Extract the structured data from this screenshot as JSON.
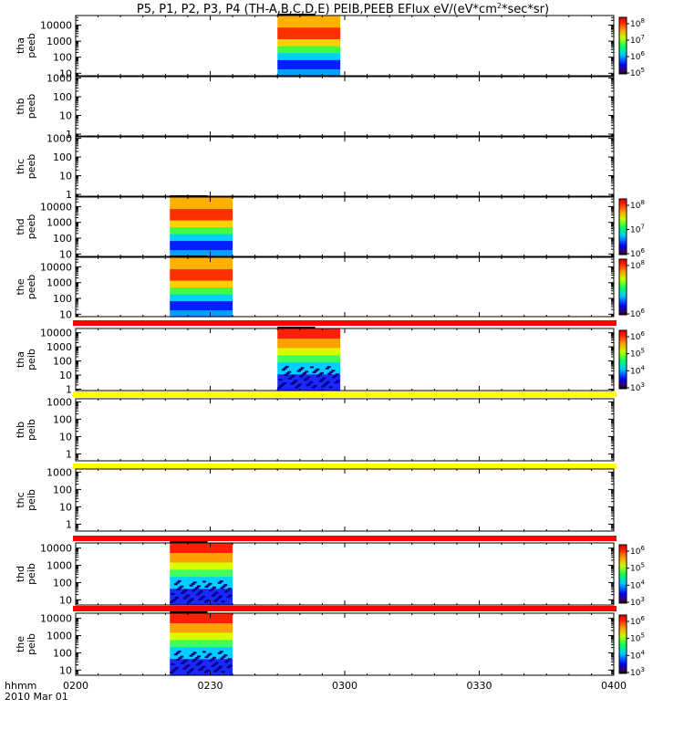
{
  "title": {
    "prefix": "P5, P1, P2, P3, P4 (TH-A,B,C,D,E) PEIB,PEEB EFlux eV/(eV*cm",
    "sup": "2",
    "suffix": "*sec*sr)"
  },
  "xaxis": {
    "ticks": [
      "0200",
      "0230",
      "0300",
      "0330",
      "0400"
    ],
    "corner_label": "hhmm",
    "date_label": "2010 Mar 01"
  },
  "chart_data": {
    "type": "heatmap",
    "x_range": [
      "02:00",
      "04:00"
    ],
    "panels": [
      {
        "probe": "tha",
        "product": "peeb",
        "ylabel": [
          "tha",
          "peeb"
        ],
        "yticks": [
          "10000",
          "1000",
          "100",
          "10"
        ],
        "ylog": true,
        "yrange_eV": [
          7,
          40000
        ],
        "data_interval": [
          "02:45",
          "02:59"
        ],
        "colorbar": [
          "10",
          "10",
          "10",
          "10"
        ],
        "colorbar_exp": [
          "8",
          "7",
          "6",
          "5"
        ],
        "mode_bar": "none"
      },
      {
        "probe": "thb",
        "product": "peeb",
        "ylabel": [
          "thb",
          "peeb"
        ],
        "yticks": [
          "1000",
          "100",
          "10",
          "1"
        ],
        "ylog": true,
        "yrange_eV": [
          0.8,
          1200
        ],
        "data_interval": null,
        "colorbar": [],
        "colorbar_exp": [],
        "mode_bar": "none"
      },
      {
        "probe": "thc",
        "product": "peeb",
        "ylabel": [
          "thc",
          "peeb"
        ],
        "yticks": [
          "1000",
          "100",
          "10",
          "1"
        ],
        "ylog": true,
        "yrange_eV": [
          0.8,
          1200
        ],
        "data_interval": null,
        "colorbar": [],
        "colorbar_exp": [],
        "mode_bar": "none"
      },
      {
        "probe": "thd",
        "product": "peeb",
        "ylabel": [
          "thd",
          "peeb"
        ],
        "yticks": [
          "10000",
          "1000",
          "100",
          "10"
        ],
        "ylog": true,
        "yrange_eV": [
          7,
          40000
        ],
        "data_interval": [
          "02:21",
          "02:35"
        ],
        "colorbar": [
          "10",
          "10",
          "10"
        ],
        "colorbar_exp": [
          "8",
          "7",
          "6"
        ],
        "mode_bar": "none"
      },
      {
        "probe": "the",
        "product": "peeb",
        "ylabel": [
          "the",
          "peeb"
        ],
        "yticks": [
          "10000",
          "1000",
          "100",
          "10"
        ],
        "ylog": true,
        "yrange_eV": [
          7,
          40000
        ],
        "data_interval": [
          "02:21",
          "02:35"
        ],
        "colorbar": [
          "10",
          "10"
        ],
        "colorbar_exp": [
          "8",
          "6"
        ],
        "mode_bar": "none"
      },
      {
        "probe": "tha",
        "product": "peib",
        "ylabel": [
          "tha",
          "peib"
        ],
        "yticks": [
          "10000",
          "1000",
          "100",
          "10",
          "1"
        ],
        "ylog": true,
        "yrange_eV": [
          0.8,
          20000
        ],
        "data_interval": [
          "02:45",
          "02:59"
        ],
        "colorbar": [
          "10",
          "10",
          "10",
          "10"
        ],
        "colorbar_exp": [
          "6",
          "5",
          "4",
          "3"
        ],
        "mode_bar": "#ff0000"
      },
      {
        "probe": "thb",
        "product": "peib",
        "ylabel": [
          "thb",
          "peib"
        ],
        "yticks": [
          "1000",
          "100",
          "10",
          "1"
        ],
        "ylog": true,
        "yrange_eV": [
          0.4,
          1500
        ],
        "data_interval": null,
        "colorbar": [],
        "colorbar_exp": [],
        "mode_bar": "#ffff00"
      },
      {
        "probe": "thc",
        "product": "peib",
        "ylabel": [
          "thc",
          "peib"
        ],
        "yticks": [
          "1000",
          "100",
          "10",
          "1"
        ],
        "ylog": true,
        "yrange_eV": [
          0.4,
          1500
        ],
        "data_interval": null,
        "colorbar": [],
        "colorbar_exp": [],
        "mode_bar": "#ffff00"
      },
      {
        "probe": "thd",
        "product": "peib",
        "ylabel": [
          "thd",
          "peib"
        ],
        "yticks": [
          "10000",
          "1000",
          "100",
          "10"
        ],
        "ylog": true,
        "yrange_eV": [
          5,
          20000
        ],
        "data_interval": [
          "02:21",
          "02:35"
        ],
        "colorbar": [
          "10",
          "10",
          "10",
          "10"
        ],
        "colorbar_exp": [
          "6",
          "5",
          "4",
          "3"
        ],
        "mode_bar": "#ff0000"
      },
      {
        "probe": "the",
        "product": "peib",
        "ylabel": [
          "the",
          "peib"
        ],
        "yticks": [
          "10000",
          "1000",
          "100",
          "10"
        ],
        "ylog": true,
        "yrange_eV": [
          5,
          20000
        ],
        "data_interval": [
          "02:21",
          "02:35"
        ],
        "colorbar": [
          "10",
          "10",
          "10",
          "10"
        ],
        "colorbar_exp": [
          "6",
          "5",
          "4",
          "3"
        ],
        "mode_bar": "#ff0000"
      }
    ]
  }
}
